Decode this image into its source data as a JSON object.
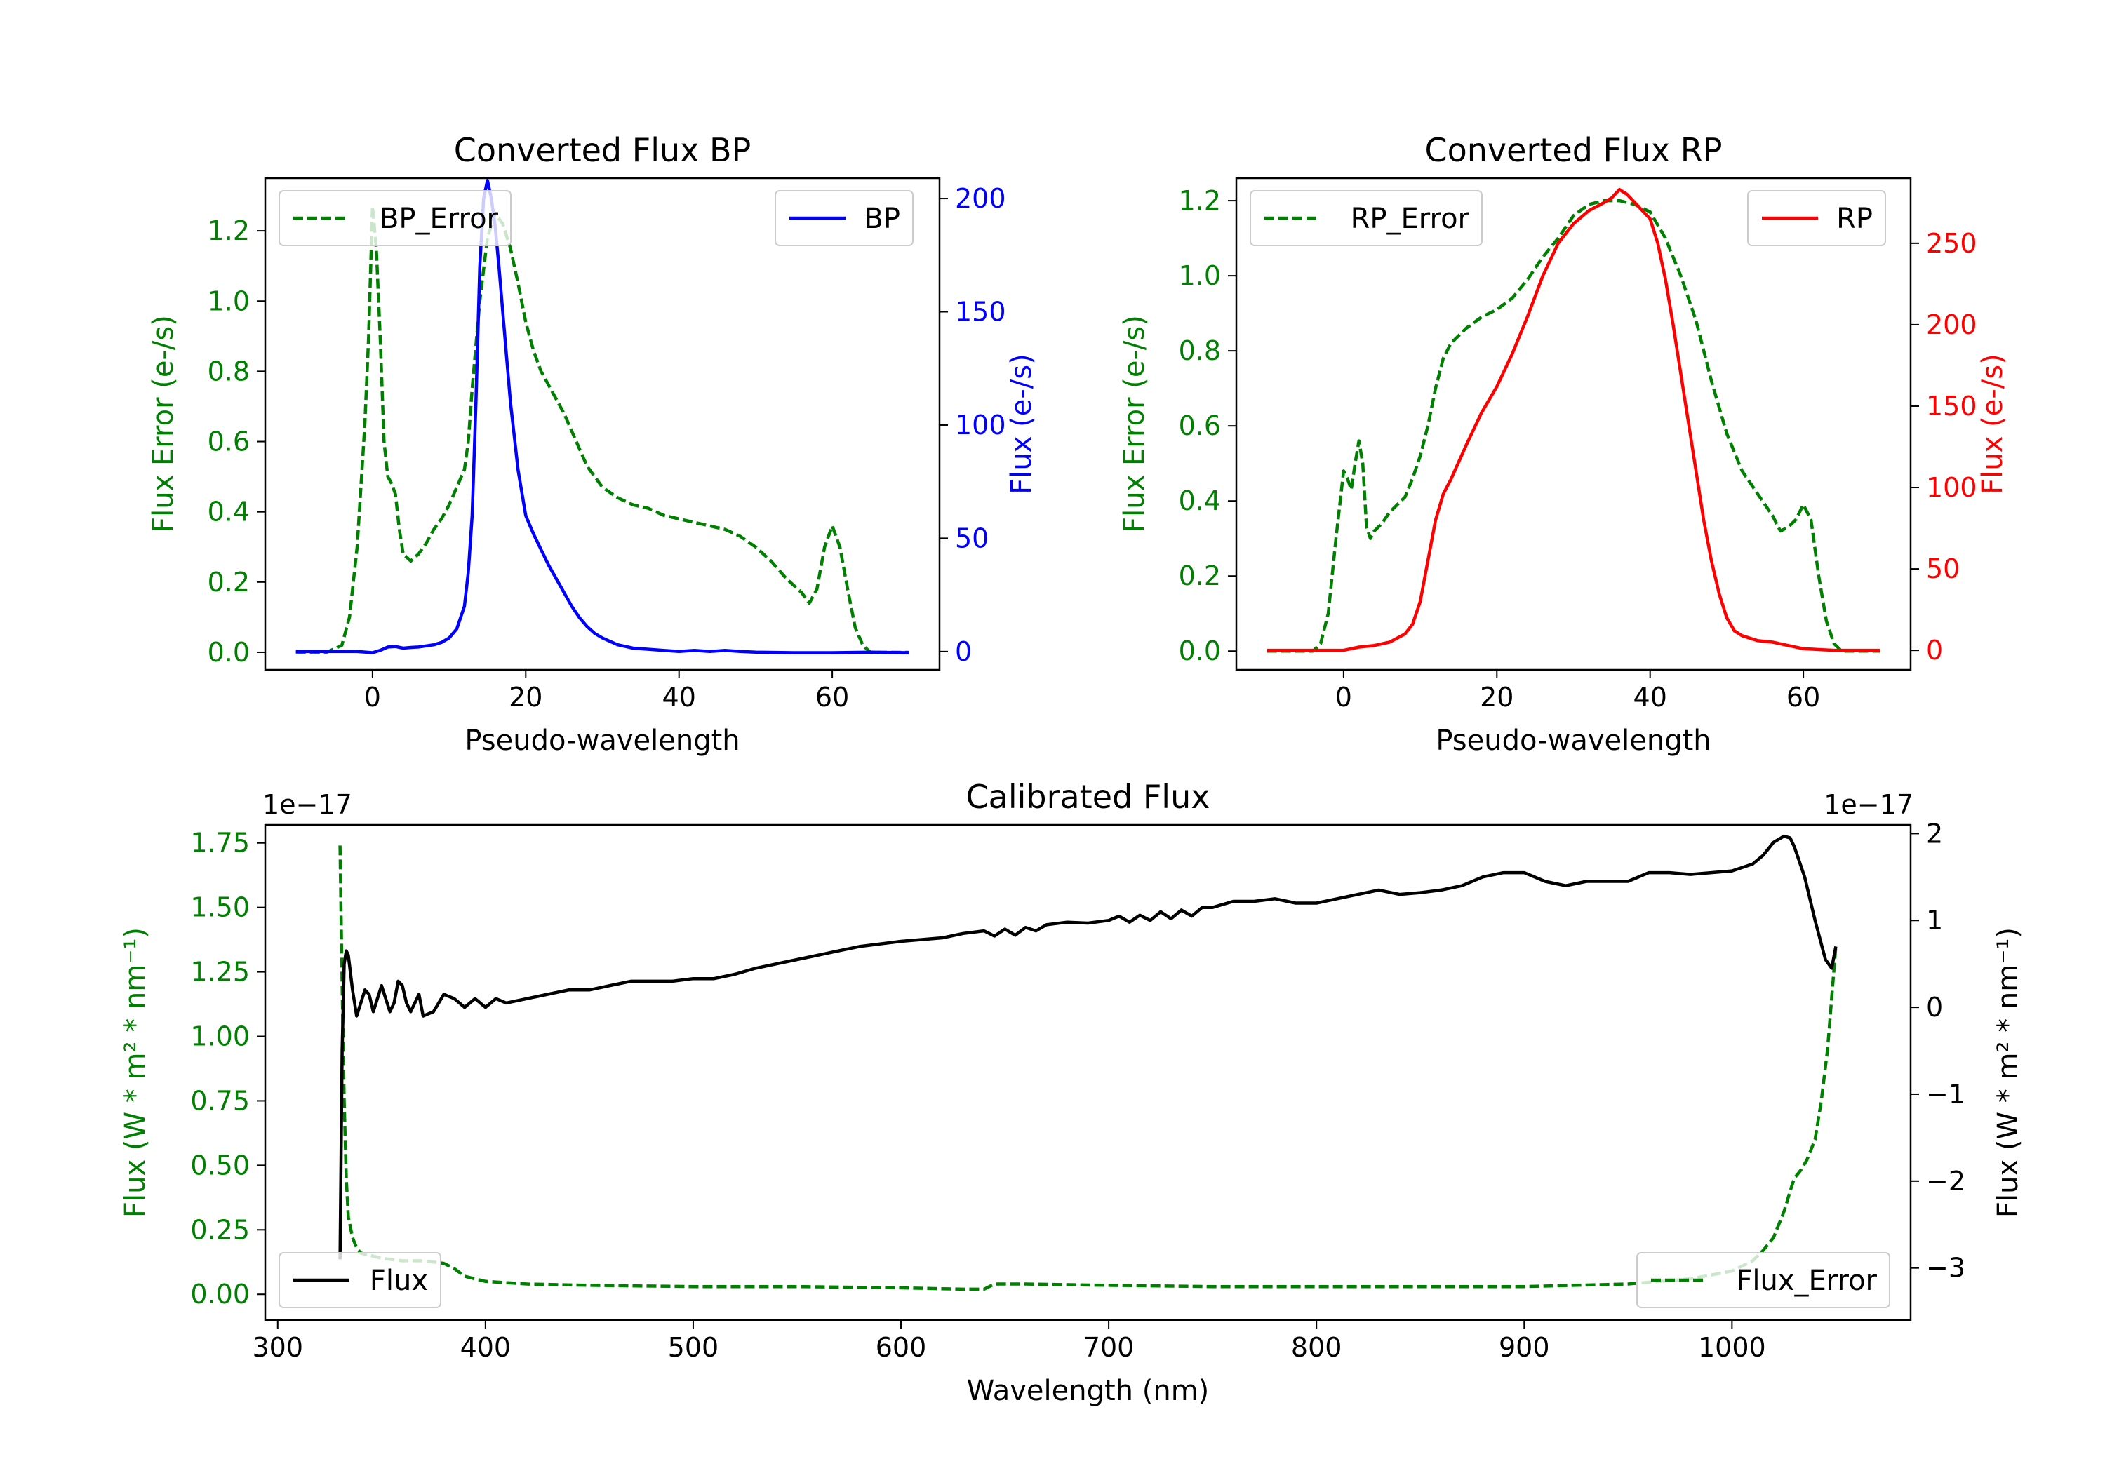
{
  "chart_data": [
    {
      "type": "line",
      "title": "Converted Flux BP",
      "xlabel": "Pseudo-wavelength",
      "ylabel_left": "Flux Error (e-/s)",
      "ylabel_right": "Flux (e-/s)",
      "xlim": [
        -14,
        74
      ],
      "ylim_left": [
        -0.05,
        1.35
      ],
      "ylim_right": [
        -8.1,
        209
      ],
      "xticks": [
        0,
        20,
        40,
        60
      ],
      "yticks_left": [
        0.0,
        0.2,
        0.4,
        0.6,
        0.8,
        1.0,
        1.2
      ],
      "yticks_right": [
        0,
        50,
        100,
        150,
        200
      ],
      "left_color": "#008000",
      "right_color": "#0000ff",
      "series": [
        {
          "name": "BP_Error",
          "axis": "left",
          "style": "dashed",
          "color": "#008000",
          "x": [
            -10,
            -6,
            -4,
            -3,
            -2,
            -1,
            -0.5,
            0,
            0.5,
            1,
            1.5,
            2,
            2.5,
            3,
            3.5,
            4,
            5,
            6,
            7,
            8,
            9,
            10,
            11,
            12,
            12.5,
            13,
            14,
            15,
            16,
            17,
            18,
            19,
            20,
            21,
            22,
            23,
            24,
            25,
            26,
            27,
            28,
            29,
            30,
            32,
            34,
            36,
            38,
            40,
            42,
            44,
            46,
            48,
            50,
            52,
            54,
            56,
            57,
            58,
            59,
            60,
            61,
            62,
            63,
            64,
            65,
            66,
            68,
            70
          ],
          "values": [
            0.0,
            0.0,
            0.02,
            0.1,
            0.3,
            0.65,
            0.9,
            1.27,
            1.15,
            0.9,
            0.6,
            0.5,
            0.48,
            0.45,
            0.35,
            0.28,
            0.26,
            0.28,
            0.31,
            0.35,
            0.38,
            0.42,
            0.47,
            0.52,
            0.6,
            0.75,
            1.0,
            1.18,
            1.25,
            1.22,
            1.15,
            1.05,
            0.94,
            0.86,
            0.8,
            0.76,
            0.72,
            0.68,
            0.63,
            0.58,
            0.53,
            0.5,
            0.47,
            0.44,
            0.42,
            0.41,
            0.39,
            0.38,
            0.37,
            0.36,
            0.35,
            0.33,
            0.3,
            0.26,
            0.21,
            0.17,
            0.14,
            0.18,
            0.3,
            0.36,
            0.3,
            0.18,
            0.07,
            0.02,
            0.0,
            0.0,
            0.0,
            0.0
          ]
        },
        {
          "name": "BP",
          "axis": "right",
          "style": "solid",
          "color": "#0000ff",
          "x": [
            -10,
            -6,
            -4,
            -2,
            0,
            1,
            2,
            3,
            4,
            5,
            6,
            7,
            8,
            9,
            10,
            11,
            12,
            12.5,
            13,
            13.5,
            14,
            14.5,
            15,
            15.5,
            16,
            16.5,
            17,
            18,
            19,
            20,
            21,
            22,
            23,
            24,
            25,
            26,
            27,
            28,
            29,
            30,
            32,
            34,
            36,
            38,
            40,
            42,
            44,
            46,
            48,
            50,
            55,
            60,
            65,
            70
          ],
          "values": [
            0,
            0,
            0,
            0,
            -0.5,
            0.5,
            2,
            2.2,
            1.5,
            1.8,
            2,
            2.5,
            3,
            4,
            6,
            10,
            20,
            35,
            60,
            110,
            170,
            200,
            208,
            200,
            188,
            170,
            150,
            110,
            80,
            60,
            52,
            45,
            38,
            32,
            26,
            20,
            15,
            11,
            8,
            6,
            3,
            1.5,
            1,
            0.5,
            0,
            0.5,
            0,
            0.5,
            0,
            -0.3,
            -0.5,
            -0.5,
            -0.3,
            -0.5
          ]
        }
      ],
      "legend": [
        {
          "label": "BP_Error",
          "position": "upper-left"
        },
        {
          "label": "BP",
          "position": "upper-right"
        }
      ]
    },
    {
      "type": "line",
      "title": "Converted Flux RP",
      "xlabel": "Pseudo-wavelength",
      "ylabel_left": "Flux Error (e-/s)",
      "ylabel_right": "Flux (e-/s)",
      "xlim": [
        -14,
        74
      ],
      "ylim_left": [
        -0.05,
        1.26
      ],
      "ylim_right": [
        -12,
        290
      ],
      "xticks": [
        0,
        20,
        40,
        60
      ],
      "yticks_left": [
        0.0,
        0.2,
        0.4,
        0.6,
        0.8,
        1.0,
        1.2
      ],
      "yticks_right": [
        0,
        50,
        100,
        150,
        200,
        250
      ],
      "left_color": "#008000",
      "right_color": "#ff0000",
      "series": [
        {
          "name": "RP_Error",
          "axis": "left",
          "style": "dashed",
          "color": "#008000",
          "x": [
            -10,
            -4,
            -3,
            -2,
            -1,
            0,
            0.5,
            1,
            1.5,
            2,
            2.5,
            3,
            3.5,
            4,
            5,
            6,
            7,
            8,
            9,
            10,
            11,
            12,
            13,
            14,
            16,
            18,
            20,
            22,
            24,
            26,
            28,
            30,
            32,
            34,
            36,
            38,
            40,
            42,
            44,
            46,
            48,
            50,
            52,
            54,
            55,
            56,
            57,
            58,
            59,
            60,
            61,
            62,
            63,
            64,
            65,
            66,
            70
          ],
          "values": [
            0.0,
            0.0,
            0.02,
            0.1,
            0.3,
            0.48,
            0.46,
            0.43,
            0.5,
            0.56,
            0.5,
            0.33,
            0.3,
            0.32,
            0.34,
            0.37,
            0.39,
            0.41,
            0.46,
            0.52,
            0.6,
            0.7,
            0.78,
            0.82,
            0.86,
            0.89,
            0.91,
            0.94,
            0.99,
            1.05,
            1.1,
            1.16,
            1.19,
            1.2,
            1.2,
            1.19,
            1.17,
            1.1,
            1.0,
            0.88,
            0.72,
            0.58,
            0.48,
            0.42,
            0.39,
            0.36,
            0.32,
            0.33,
            0.35,
            0.39,
            0.35,
            0.2,
            0.08,
            0.02,
            0.0,
            0.0,
            0.0
          ]
        },
        {
          "name": "RP",
          "axis": "right",
          "style": "solid",
          "color": "#ff0000",
          "x": [
            -10,
            -4,
            -2,
            0,
            2,
            4,
            6,
            8,
            9,
            10,
            11,
            12,
            13,
            14,
            16,
            18,
            20,
            22,
            24,
            26,
            28,
            30,
            32,
            34,
            35,
            36,
            37,
            38,
            39,
            40,
            41,
            42,
            43,
            44,
            45,
            46,
            47,
            48,
            49,
            50,
            51,
            52,
            54,
            56,
            58,
            60,
            62,
            64,
            70
          ],
          "values": [
            0,
            0,
            0,
            0,
            2,
            3,
            5,
            10,
            16,
            30,
            55,
            80,
            96,
            105,
            126,
            146,
            162,
            182,
            205,
            230,
            250,
            262,
            270,
            275,
            278,
            283,
            280,
            275,
            270,
            265,
            250,
            228,
            200,
            170,
            140,
            110,
            80,
            55,
            35,
            20,
            12,
            9,
            6,
            5,
            3,
            1,
            0.5,
            0,
            0
          ]
        }
      ],
      "legend": [
        {
          "label": "RP_Error",
          "position": "upper-left"
        },
        {
          "label": "RP",
          "position": "upper-right"
        }
      ]
    },
    {
      "type": "line",
      "title": "Calibrated Flux",
      "xlabel": "Wavelength (nm)",
      "ylabel_left": "Flux (W * m² * nm⁻¹)",
      "ylabel_right": "Flux (W * m² * nm⁻¹)",
      "scale_left": "1e−17",
      "scale_right": "1e−17",
      "xlim": [
        294,
        1086
      ],
      "ylim_left": [
        -0.1,
        1.82
      ],
      "ylim_right": [
        -3.6,
        2.1
      ],
      "xticks": [
        300,
        400,
        500,
        600,
        700,
        800,
        900,
        1000
      ],
      "yticks_left": [
        0.0,
        0.25,
        0.5,
        0.75,
        1.0,
        1.25,
        1.5,
        1.75
      ],
      "yticks_right": [
        -3,
        -2,
        -1,
        0,
        1,
        2
      ],
      "left_color": "#008000",
      "right_color": "#000000",
      "series": [
        {
          "name": "Flux_Error",
          "axis": "left",
          "style": "dashed",
          "color": "#008000",
          "x": [
            330,
            331,
            332,
            333,
            334,
            336,
            338,
            340,
            345,
            350,
            360,
            370,
            380,
            385,
            390,
            400,
            420,
            450,
            500,
            550,
            600,
            630,
            640,
            645,
            660,
            700,
            750,
            800,
            850,
            900,
            950,
            980,
            1000,
            1010,
            1015,
            1020,
            1025,
            1028,
            1030,
            1033,
            1036,
            1040,
            1043,
            1046,
            1048,
            1050
          ],
          "values": [
            1.74,
            1.2,
            0.75,
            0.45,
            0.3,
            0.22,
            0.18,
            0.16,
            0.15,
            0.14,
            0.13,
            0.13,
            0.12,
            0.1,
            0.07,
            0.05,
            0.04,
            0.035,
            0.03,
            0.03,
            0.025,
            0.02,
            0.02,
            0.04,
            0.04,
            0.035,
            0.03,
            0.03,
            0.03,
            0.03,
            0.04,
            0.06,
            0.09,
            0.13,
            0.17,
            0.22,
            0.32,
            0.4,
            0.45,
            0.48,
            0.52,
            0.6,
            0.75,
            0.95,
            1.15,
            1.35
          ]
        },
        {
          "name": "Flux",
          "axis": "right",
          "style": "solid",
          "color": "#000000",
          "x": [
            330,
            331,
            332,
            333,
            334,
            336,
            338,
            340,
            342,
            344,
            346,
            348,
            350,
            352,
            354,
            356,
            358,
            360,
            362,
            364,
            366,
            368,
            370,
            375,
            380,
            385,
            390,
            395,
            400,
            405,
            410,
            420,
            430,
            440,
            450,
            460,
            470,
            480,
            490,
            500,
            510,
            520,
            530,
            540,
            550,
            560,
            570,
            580,
            590,
            600,
            610,
            620,
            630,
            640,
            645,
            650,
            655,
            660,
            665,
            670,
            680,
            690,
            700,
            705,
            710,
            715,
            720,
            725,
            730,
            735,
            740,
            745,
            750,
            760,
            770,
            780,
            790,
            800,
            810,
            820,
            830,
            840,
            850,
            860,
            870,
            880,
            890,
            900,
            910,
            920,
            930,
            940,
            950,
            960,
            970,
            980,
            990,
            1000,
            1010,
            1015,
            1020,
            1025,
            1028,
            1030,
            1035,
            1040,
            1045,
            1048,
            1050
          ],
          "values": [
            -2.9,
            -0.5,
            0.5,
            0.65,
            0.6,
            0.2,
            -0.1,
            0.05,
            0.2,
            0.15,
            -0.05,
            0.1,
            0.25,
            0.1,
            -0.05,
            0.05,
            0.3,
            0.25,
            0.05,
            -0.05,
            0.05,
            0.15,
            -0.1,
            -0.05,
            0.15,
            0.1,
            0.0,
            0.1,
            0.0,
            0.1,
            0.05,
            0.1,
            0.15,
            0.2,
            0.2,
            0.25,
            0.3,
            0.3,
            0.3,
            0.33,
            0.33,
            0.38,
            0.45,
            0.5,
            0.55,
            0.6,
            0.65,
            0.7,
            0.73,
            0.76,
            0.78,
            0.8,
            0.85,
            0.88,
            0.82,
            0.9,
            0.83,
            0.92,
            0.88,
            0.95,
            0.98,
            0.97,
            1.0,
            1.05,
            0.98,
            1.06,
            1.0,
            1.1,
            1.02,
            1.12,
            1.05,
            1.15,
            1.15,
            1.22,
            1.22,
            1.25,
            1.2,
            1.2,
            1.25,
            1.3,
            1.35,
            1.3,
            1.32,
            1.35,
            1.4,
            1.5,
            1.55,
            1.55,
            1.45,
            1.4,
            1.45,
            1.45,
            1.45,
            1.55,
            1.55,
            1.53,
            1.55,
            1.57,
            1.65,
            1.75,
            1.9,
            1.97,
            1.95,
            1.85,
            1.5,
            1.0,
            0.55,
            0.45,
            0.7
          ]
        }
      ],
      "legend": [
        {
          "label": "Flux",
          "position": "lower-left"
        },
        {
          "label": "Flux_Error",
          "position": "lower-right"
        }
      ]
    }
  ]
}
